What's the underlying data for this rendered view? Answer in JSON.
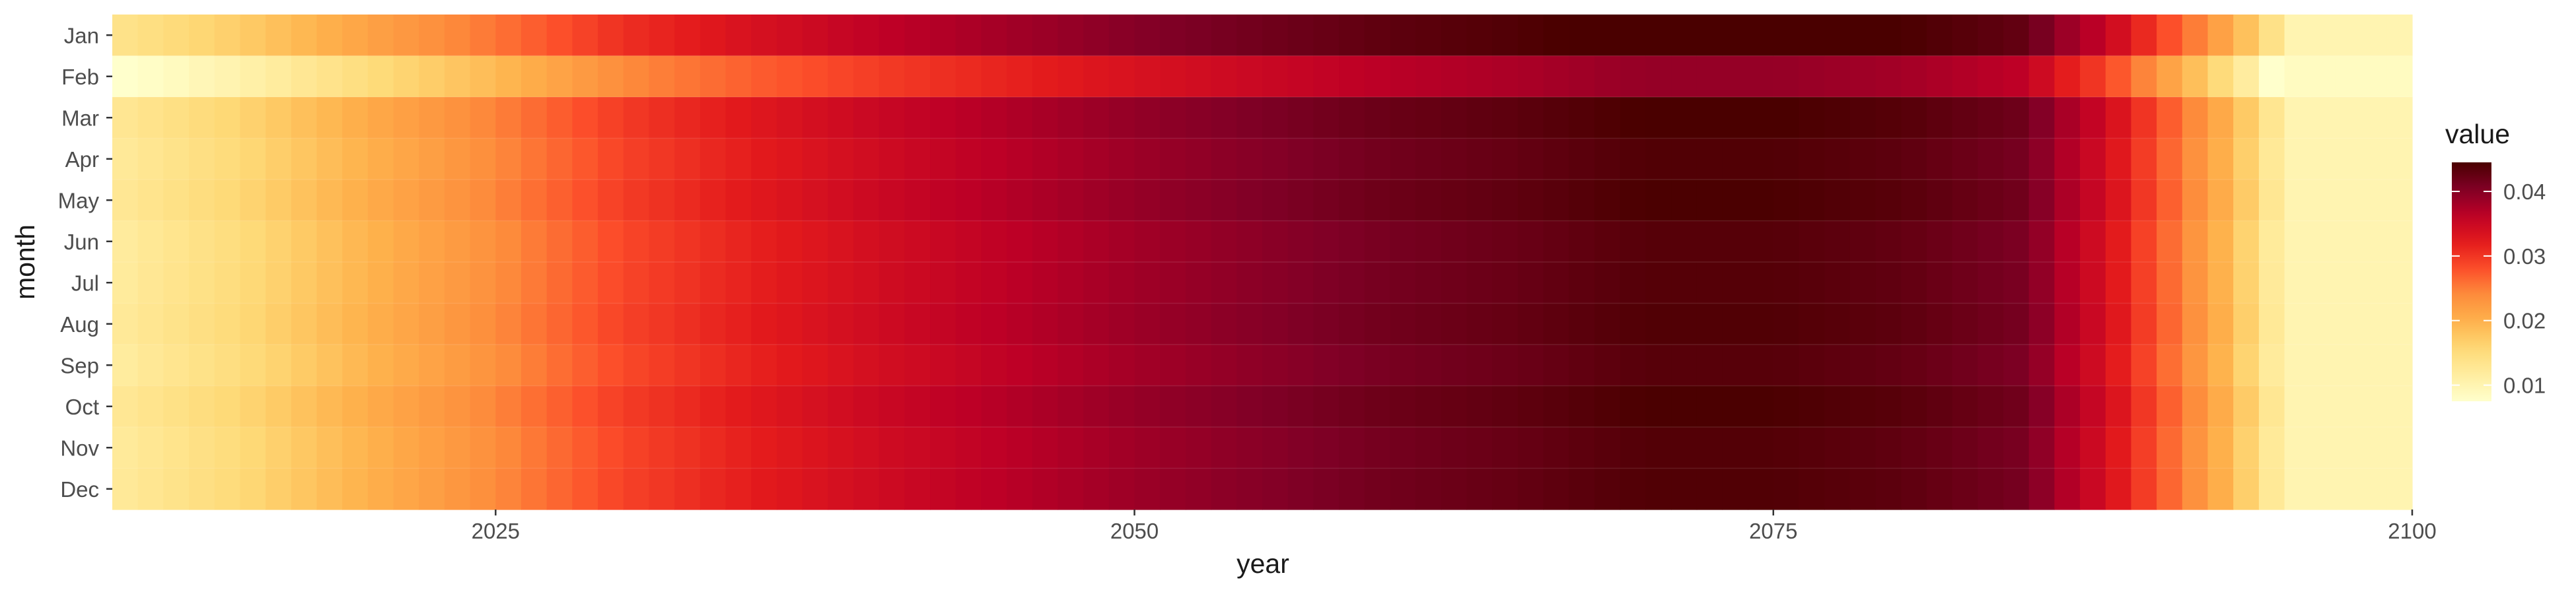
{
  "chart_data": {
    "type": "heatmap",
    "title": "",
    "xlabel": "year",
    "ylabel": "month",
    "x_range": [
      2010,
      2100
    ],
    "x_ticks": [
      2025,
      2050,
      2075,
      2100
    ],
    "x_tick_labels": [
      "2025",
      "2050",
      "2075",
      "2100"
    ],
    "months": [
      "Jan",
      "Feb",
      "Mar",
      "Apr",
      "May",
      "Jun",
      "Jul",
      "Aug",
      "Sep",
      "Oct",
      "Nov",
      "Dec"
    ],
    "legend": {
      "title": "value",
      "position": "right",
      "ticks": [
        0.01,
        0.02,
        0.03,
        0.04
      ],
      "tick_labels": [
        "0.01",
        "0.02",
        "0.03",
        "0.04"
      ],
      "range": [
        0.0075,
        0.0445
      ]
    },
    "color_scale": {
      "name": "YlOrRd",
      "stops": [
        "#FFFFCC",
        "#FFEDA0",
        "#FED976",
        "#FEB24C",
        "#FD8D3C",
        "#FC4E2A",
        "#E31A1C",
        "#BD0026",
        "#800026",
        "#4A0000"
      ]
    },
    "year_profile": {
      "years": [
        2010,
        2015,
        2020,
        2025,
        2030,
        2035,
        2040,
        2045,
        2050,
        2055,
        2060,
        2065,
        2070,
        2075,
        2080,
        2085,
        2086,
        2088,
        2090,
        2092,
        2094,
        2095,
        2100
      ],
      "values": [
        0.012,
        0.0155,
        0.02,
        0.024,
        0.029,
        0.032,
        0.0345,
        0.0365,
        0.0385,
        0.04,
        0.0415,
        0.0425,
        0.044,
        0.044,
        0.043,
        0.041,
        0.038,
        0.034,
        0.028,
        0.022,
        0.015,
        0.01,
        0.01
      ]
    },
    "month_offsets": [
      0.0015,
      -0.005,
      0.0006,
      0.0,
      0.0004,
      -0.0004,
      -0.0003,
      0.0,
      -0.0005,
      0.0004,
      -0.0002,
      0.0
    ]
  }
}
